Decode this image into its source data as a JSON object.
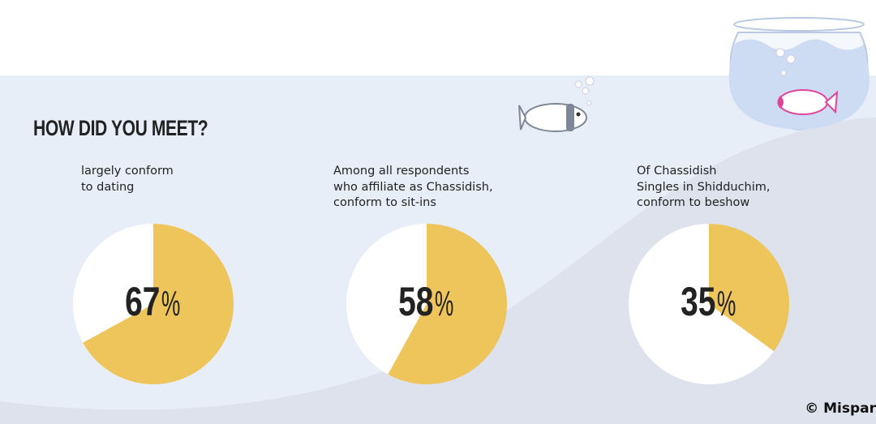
{
  "title": "HOW DID YOU MEET?",
  "colors": {
    "accent": "#EDC55A",
    "remainder": "#FFFFFF",
    "background": "#E8EEF8",
    "wave": "#DDE2EC"
  },
  "chart_data": [
    {
      "type": "pie",
      "caption": "largely conform\nto dating",
      "values": [
        67,
        33
      ],
      "label": "67",
      "unit": "%"
    },
    {
      "type": "pie",
      "caption": "Among all respondents\nwho affiliate as Chassidish,\nconform to sit-ins",
      "values": [
        58,
        42
      ],
      "label": "58",
      "unit": "%"
    },
    {
      "type": "pie",
      "caption": "Of Chassidish\nSingles in Shidduchim,\nconform to beshow",
      "values": [
        35,
        65
      ],
      "label": "35",
      "unit": "%"
    }
  ],
  "icons": [
    "fish-icon",
    "fishbowl-icon"
  ],
  "copyright": "© Mispar"
}
